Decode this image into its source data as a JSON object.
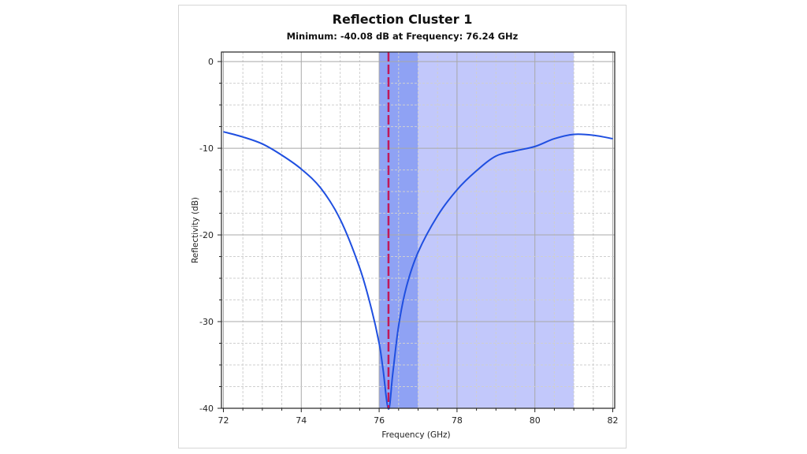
{
  "chart_data": {
    "type": "line",
    "title": "Reflection Cluster 1",
    "subtitle": "Minimum: -40.08 dB at Frequency: 76.24 GHz",
    "xlabel": "Frequency (GHz)",
    "ylabel": "Reflectivity (dB)",
    "xlim": [
      71.95,
      82.05
    ],
    "ylim": [
      -40,
      1.1
    ],
    "xticks": [
      72,
      74,
      76,
      78,
      80,
      82
    ],
    "yticks": [
      0,
      -10,
      -20,
      -30,
      -40
    ],
    "grid": true,
    "series": [
      {
        "name": "Reflectivity",
        "color": "#1f4fe0",
        "x": [
          72,
          72.5,
          73,
          73.5,
          74,
          74.5,
          75,
          75.5,
          75.8,
          76,
          76.1,
          76.24,
          76.35,
          76.5,
          76.7,
          77,
          77.5,
          78,
          78.5,
          79,
          79.5,
          80,
          80.5,
          81,
          81.5,
          82
        ],
        "y": [
          -8.1,
          -8.7,
          -9.5,
          -10.8,
          -12.4,
          -14.6,
          -18.2,
          -23.8,
          -28.5,
          -32.5,
          -35.5,
          -40.08,
          -36,
          -30.5,
          -26,
          -22,
          -17.8,
          -14.8,
          -12.6,
          -10.9,
          -10.3,
          -9.8,
          -8.9,
          -8.4,
          -8.5,
          -8.9
        ]
      }
    ],
    "regions": [
      {
        "from": 76,
        "to": 77,
        "color": "#8fa2f4"
      },
      {
        "from": 77,
        "to": 81,
        "color": "#c2c8fb"
      }
    ],
    "marker_line": {
      "x": 76.24,
      "color": "#c0185a",
      "style": "dashed"
    }
  }
}
